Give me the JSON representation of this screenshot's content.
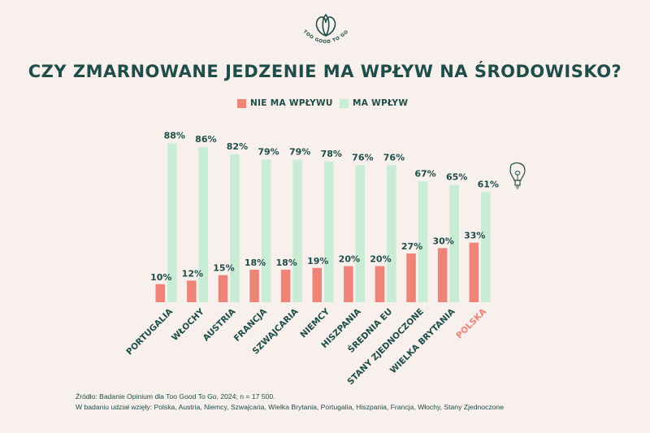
{
  "brand": {
    "name": "TOO GOOD TO GO"
  },
  "title": "CZY ZMARNOWANE JEDZENIE MA WPŁYW NA ŚRODOWISKO?",
  "legend": {
    "no_impact": {
      "label": "NIE MA WPŁYWU",
      "color": "#ee8378"
    },
    "impact": {
      "label": "MA WPŁYW",
      "color": "#c9ecd5"
    }
  },
  "chart_data": {
    "type": "bar",
    "title": "CZY ZMARNOWANE JEDZENIE MA WPŁYW NA ŚRODOWISKO?",
    "categories": [
      "PORTUGALIA",
      "WŁOCHY",
      "AUSTRIA",
      "FRANCJA",
      "SZWAJCARIA",
      "NIEMCY",
      "HISZPANIA",
      "ŚREDNIA EU",
      "STANY ZJEDNOCZONE",
      "WIELKA BRYTANIA",
      "POLSKA"
    ],
    "series": [
      {
        "name": "NIE MA WPŁYWU",
        "values": [
          10,
          12,
          15,
          18,
          18,
          19,
          20,
          20,
          27,
          30,
          33
        ],
        "labels": [
          "10%",
          "12%",
          "15%",
          "18%",
          "18%",
          "19%",
          "20%",
          "20%",
          "27%",
          "30%",
          "33%"
        ],
        "color": "#ee8378"
      },
      {
        "name": "MA WPŁYW",
        "values": [
          88,
          86,
          82,
          79,
          79,
          78,
          76,
          76,
          67,
          65,
          61
        ],
        "labels": [
          "88%",
          "86%",
          "82%",
          "79%",
          "79%",
          "78%",
          "76%",
          "76%",
          "67%",
          "65%",
          "61%"
        ],
        "color": "#c9ecd5"
      }
    ],
    "ylim": [
      0,
      100
    ],
    "highlight_category": "POLSKA",
    "highlight_color": "#ee8378",
    "label_color": "#1e4d4a",
    "xlabel": "",
    "ylabel": "",
    "grid": false
  },
  "footer": {
    "source": "Źródło: Badanie Opinium dla Too Good To Go, 2024; n = 17 500.",
    "participants": "W badaniu udział wzięły: Polska, Austria, Niemcy, Szwajcaria, Wielka Brytania, Portugalia, Hiszpania, Francja, Włochy, Stany Zjednoczone"
  }
}
